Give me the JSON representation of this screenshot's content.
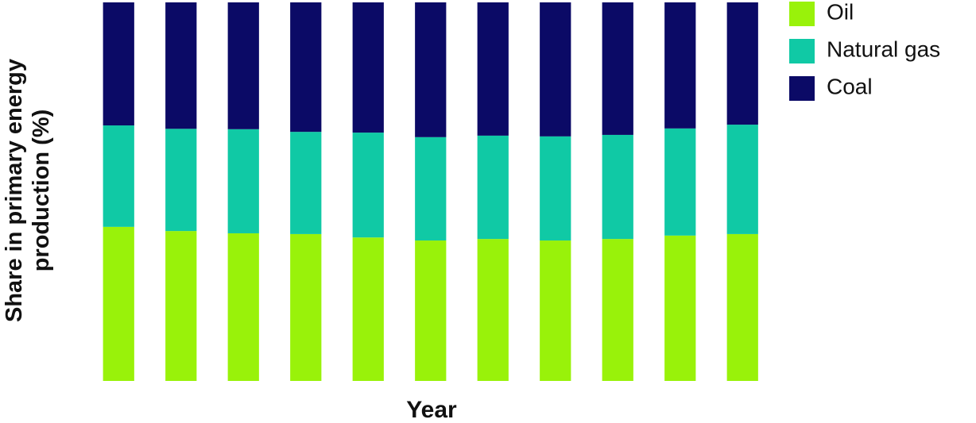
{
  "chart_data": {
    "type": "stacked_bar",
    "x_label": "Year",
    "y_label": "Share in primary energy production (%)",
    "categories": [
      null,
      null,
      null,
      null,
      null,
      null,
      null,
      null,
      null,
      null,
      null
    ],
    "series": [
      {
        "name": "Oil",
        "color": "#99f20a",
        "values": [
          40.7,
          39.6,
          39.0,
          38.8,
          37.9,
          37.1,
          37.5,
          37.1,
          37.5,
          38.4,
          38.8
        ]
      },
      {
        "name": "Natural gas",
        "color": "#10c9a5",
        "values": [
          26.8,
          27.0,
          27.5,
          27.0,
          27.7,
          27.3,
          27.3,
          27.5,
          27.5,
          28.3,
          28.9
        ]
      },
      {
        "name": "Coal",
        "color": "#0b0a66",
        "values": [
          32.5,
          33.4,
          33.5,
          34.2,
          34.4,
          35.6,
          35.2,
          35.4,
          35.0,
          33.3,
          32.3
        ]
      }
    ],
    "ylim": [
      0,
      100
    ],
    "legend": "right"
  }
}
